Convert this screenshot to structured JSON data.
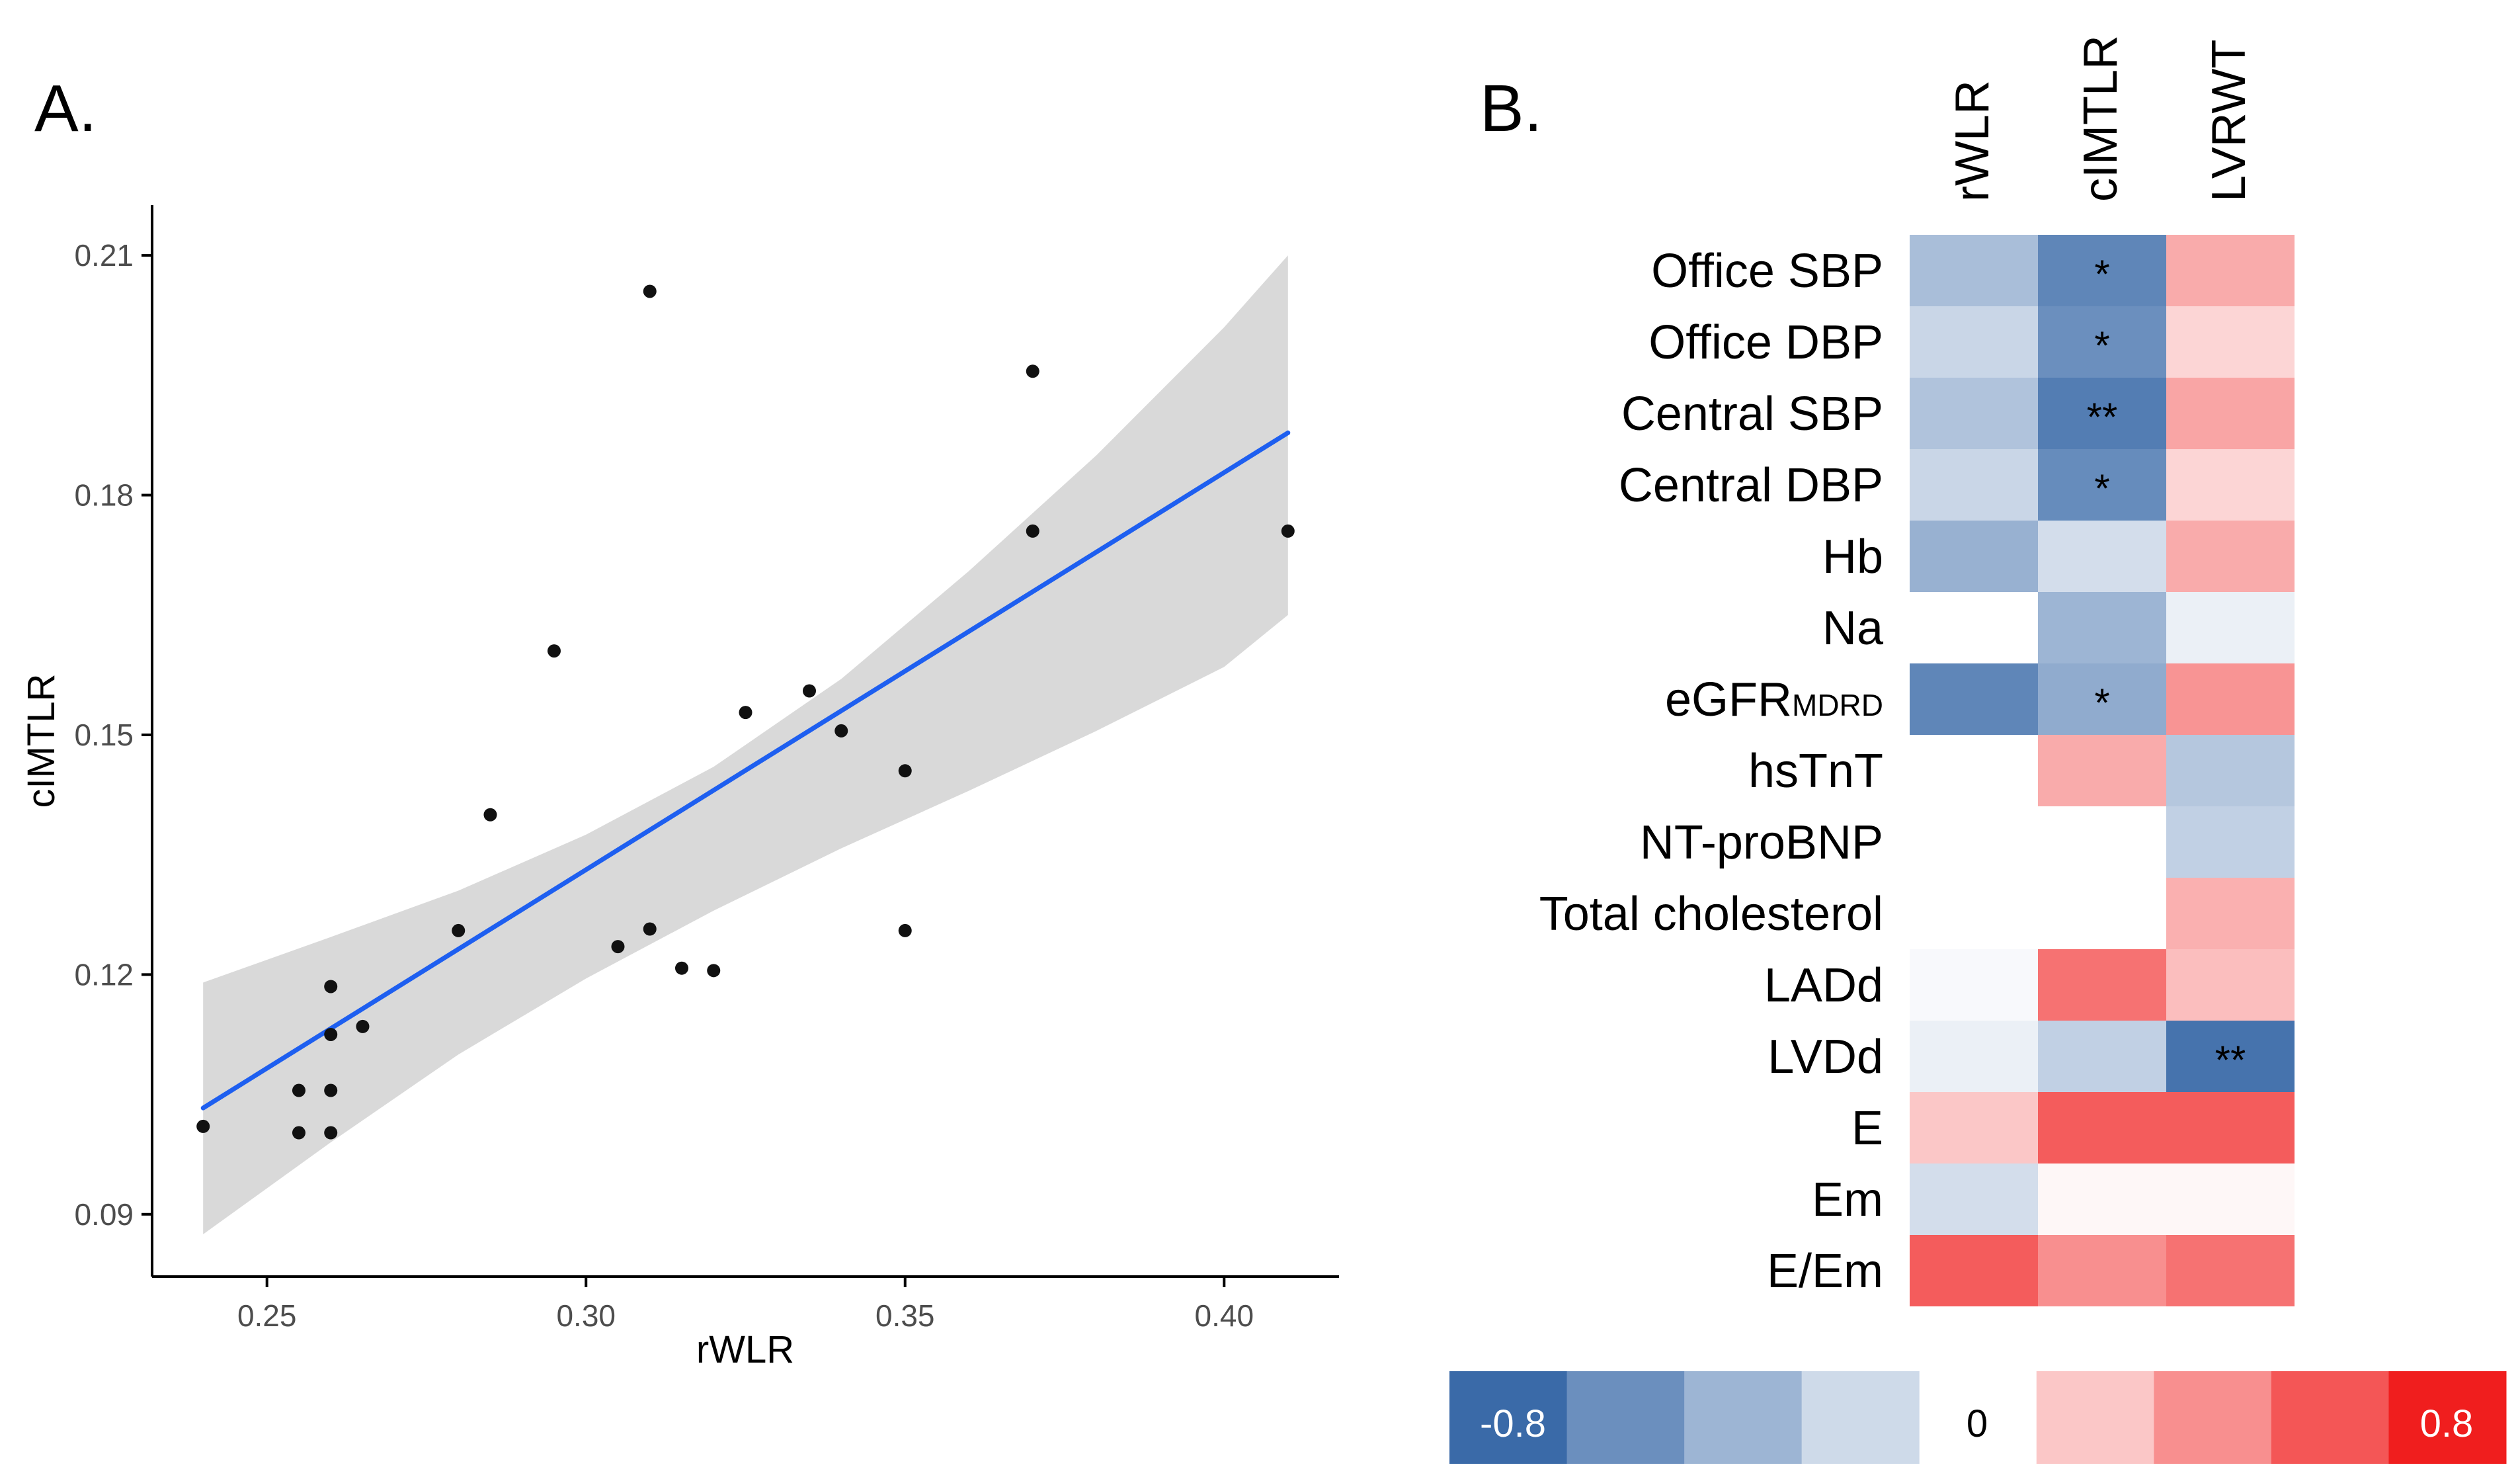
{
  "panel_a": {
    "label": "A.",
    "chart_data": {
      "type": "scatter",
      "xlabel": "rWLR",
      "ylabel": "cIMTLR",
      "xlim": [
        0.232,
        0.418
      ],
      "ylim": [
        0.0822,
        0.2163
      ],
      "xticks": [
        0.25,
        0.3,
        0.35,
        0.4
      ],
      "xtick_labels": [
        "0.25",
        "0.30",
        "0.35",
        "0.40"
      ],
      "yticks": [
        0.09,
        0.12,
        0.15,
        0.18,
        0.21
      ],
      "ytick_labels": [
        "0.09",
        "0.12",
        "0.15",
        "0.18",
        "0.21"
      ],
      "points": [
        {
          "x": 0.24,
          "y": 0.101
        },
        {
          "x": 0.255,
          "y": 0.1055
        },
        {
          "x": 0.255,
          "y": 0.1002
        },
        {
          "x": 0.26,
          "y": 0.1185
        },
        {
          "x": 0.26,
          "y": 0.1125
        },
        {
          "x": 0.26,
          "y": 0.1055
        },
        {
          "x": 0.26,
          "y": 0.1002
        },
        {
          "x": 0.265,
          "y": 0.1135
        },
        {
          "x": 0.28,
          "y": 0.1255
        },
        {
          "x": 0.285,
          "y": 0.14
        },
        {
          "x": 0.295,
          "y": 0.1605
        },
        {
          "x": 0.305,
          "y": 0.1235
        },
        {
          "x": 0.31,
          "y": 0.2055
        },
        {
          "x": 0.31,
          "y": 0.1257
        },
        {
          "x": 0.315,
          "y": 0.1208
        },
        {
          "x": 0.32,
          "y": 0.1205
        },
        {
          "x": 0.325,
          "y": 0.1528
        },
        {
          "x": 0.335,
          "y": 0.1555
        },
        {
          "x": 0.34,
          "y": 0.1505
        },
        {
          "x": 0.35,
          "y": 0.1455
        },
        {
          "x": 0.35,
          "y": 0.1255
        },
        {
          "x": 0.37,
          "y": 0.1955
        },
        {
          "x": 0.37,
          "y": 0.1755
        },
        {
          "x": 0.41,
          "y": 0.1755
        }
      ],
      "fit_line": {
        "x": [
          0.24,
          0.41
        ],
        "y": [
          0.1033,
          0.1878
        ],
        "color": "#1e5ff0"
      },
      "confidence_band": {
        "x": [
          0.24,
          0.26,
          0.28,
          0.3,
          0.32,
          0.34,
          0.36,
          0.38,
          0.4,
          0.41
        ],
        "upper": [
          0.119,
          0.1247,
          0.1305,
          0.1375,
          0.146,
          0.157,
          0.1705,
          0.185,
          0.201,
          0.21
        ],
        "lower": [
          0.0875,
          0.099,
          0.11,
          0.1195,
          0.128,
          0.1358,
          0.143,
          0.1505,
          0.1585,
          0.165
        ],
        "color": "#d9d9d9"
      }
    }
  },
  "panel_b": {
    "label": "B.",
    "chart_data": {
      "type": "heatmap",
      "columns": [
        "rWLR",
        "cIMTLR",
        "LVRWT"
      ],
      "rows": [
        {
          "label": "Office SBP",
          "sub": ""
        },
        {
          "label": "Office DBP",
          "sub": ""
        },
        {
          "label": "Central SBP",
          "sub": ""
        },
        {
          "label": "Central DBP",
          "sub": ""
        },
        {
          "label": "Hb",
          "sub": ""
        },
        {
          "label": "Na",
          "sub": ""
        },
        {
          "label": "eGFR",
          "sub": "MDRD"
        },
        {
          "label": "hsTnT",
          "sub": ""
        },
        {
          "label": "NT-proBNP",
          "sub": ""
        },
        {
          "label": "Total cholesterol",
          "sub": ""
        },
        {
          "label": "LADd",
          "sub": ""
        },
        {
          "label": "LVDd",
          "sub": ""
        },
        {
          "label": "E",
          "sub": ""
        },
        {
          "label": "Em",
          "sub": ""
        },
        {
          "label": "E/Em",
          "sub": ""
        }
      ],
      "values": [
        [
          -0.35,
          -0.65,
          0.3
        ],
        [
          -0.22,
          -0.6,
          0.15
        ],
        [
          -0.32,
          -0.7,
          0.32
        ],
        [
          -0.22,
          -0.62,
          0.15
        ],
        [
          -0.42,
          -0.18,
          0.3
        ],
        [
          null,
          -0.4,
          -0.08
        ],
        [
          -0.65,
          -0.45,
          0.38
        ],
        [
          null,
          0.3,
          -0.3
        ],
        [
          null,
          null,
          -0.25
        ],
        [
          null,
          null,
          0.28
        ],
        [
          -0.03,
          0.5,
          0.23
        ],
        [
          -0.08,
          -0.25,
          -0.75
        ],
        [
          0.2,
          0.58,
          0.58
        ],
        [
          -0.18,
          0.03,
          0.03
        ],
        [
          0.58,
          0.4,
          0.5
        ]
      ],
      "significance": [
        [
          "",
          "*",
          ""
        ],
        [
          "",
          "*",
          ""
        ],
        [
          "",
          "**",
          ""
        ],
        [
          "",
          "*",
          ""
        ],
        [
          "",
          "",
          ""
        ],
        [
          "",
          "",
          ""
        ],
        [
          "",
          "*",
          ""
        ],
        [
          "",
          "",
          ""
        ],
        [
          "",
          "",
          ""
        ],
        [
          "",
          "",
          ""
        ],
        [
          "",
          "",
          ""
        ],
        [
          "",
          "",
          "**"
        ],
        [
          "",
          "",
          ""
        ],
        [
          "",
          "",
          ""
        ],
        [
          "",
          "",
          ""
        ]
      ],
      "color_scale": {
        "min": -0.8,
        "max": 0.8,
        "negative_color": "#3a6aa8",
        "positive_color": "#f01e1e",
        "steps": [
          -0.8,
          -0.6,
          -0.4,
          -0.2,
          0,
          0.2,
          0.4,
          0.6,
          0.8
        ],
        "labels": {
          "min": "-0.8",
          "mid": "0",
          "max": "0.8"
        }
      }
    }
  }
}
